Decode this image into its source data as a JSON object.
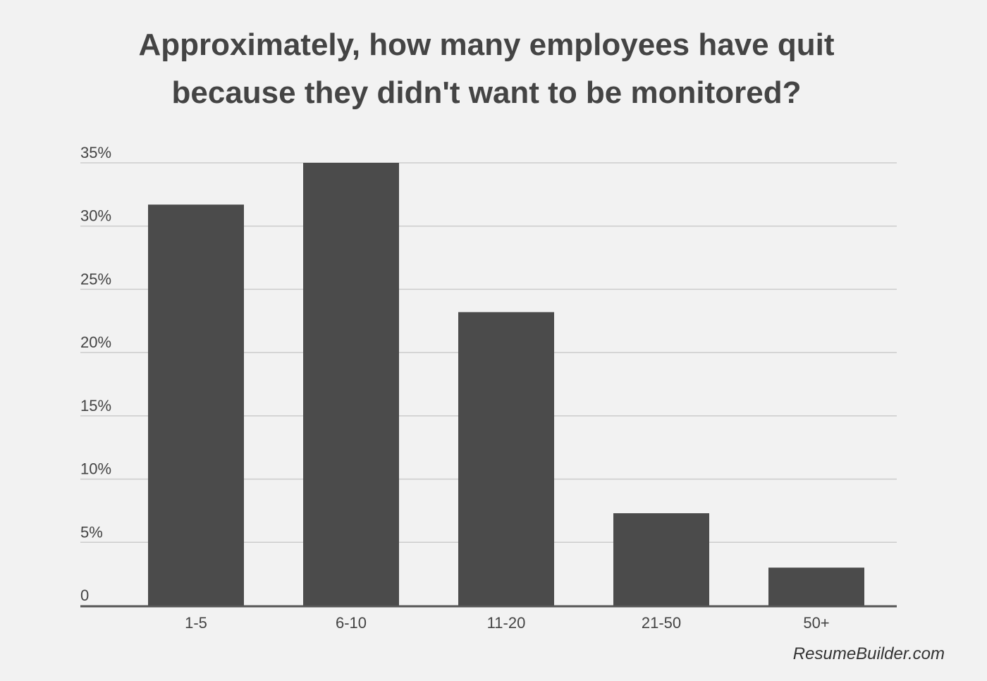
{
  "chart_data": {
    "type": "bar",
    "title_lines": [
      "Approximately, how many employees have quit",
      "because they didn't want to be monitored?"
    ],
    "categories": [
      "1-5",
      "6-10",
      "11-20",
      "21-50",
      "50+"
    ],
    "values": [
      31.7,
      35.0,
      23.2,
      7.3,
      3.0
    ],
    "ytick_labels": [
      "0",
      "5%",
      "10%",
      "15%",
      "20%",
      "25%",
      "30%",
      "35%"
    ],
    "ytick_values": [
      0,
      5,
      10,
      15,
      20,
      25,
      30,
      35
    ],
    "ylim": [
      0,
      35
    ],
    "grid": true,
    "xlabel": "",
    "ylabel": "",
    "bar_color": "#4b4b4b",
    "grid_color": "#cccccc",
    "axis_color": "#555555",
    "text_color": "#444444"
  },
  "footer": {
    "source": "ResumeBuilder.com"
  }
}
